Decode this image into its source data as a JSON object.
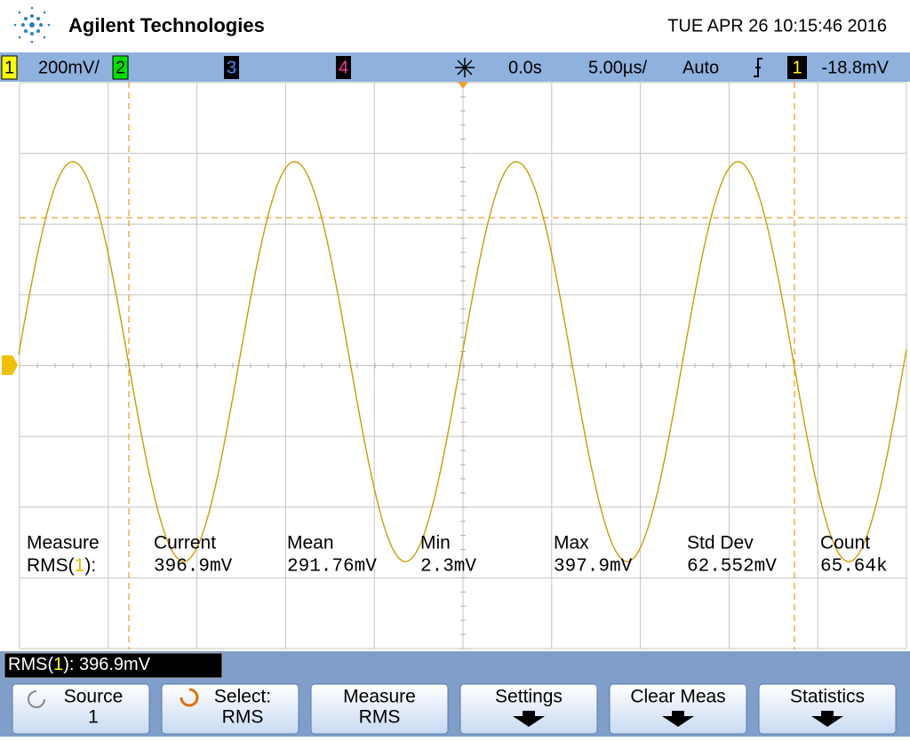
{
  "header": {
    "brand": "Agilent Technologies",
    "datetime": "TUE APR 26 10:15:46 2016"
  },
  "status_bar": {
    "channel1": "1",
    "channel1_scale": "200mV/",
    "channel2": "2",
    "channel3": "3",
    "channel4": "4",
    "delay": "0.0s",
    "timebase": "5.00µs/",
    "trigger_mode": "Auto",
    "trigger_source": "1",
    "trigger_level": "-18.8mV"
  },
  "measurements": {
    "headers": [
      "Measure",
      "Current",
      "Mean",
      "Min",
      "Max",
      "Std Dev",
      "Count"
    ],
    "label_prefix": "RMS(",
    "label_channel": "1",
    "label_suffix": "):",
    "values": [
      "396.9mV",
      "291.76mV",
      "2.3mV",
      "397.9mV",
      "62.552mV",
      "65.64k"
    ]
  },
  "readout": {
    "prefix": "RMS(",
    "channel": "1",
    "suffix": "): 396.9mV"
  },
  "softkeys": [
    {
      "line1": "Source",
      "line2": "1"
    },
    {
      "line1": "Select:",
      "line2": "RMS"
    },
    {
      "line1": "Measure",
      "line2": "RMS"
    },
    {
      "line1": "Settings"
    },
    {
      "line1": "Clear Meas"
    },
    {
      "line1": "Statistics"
    }
  ]
}
